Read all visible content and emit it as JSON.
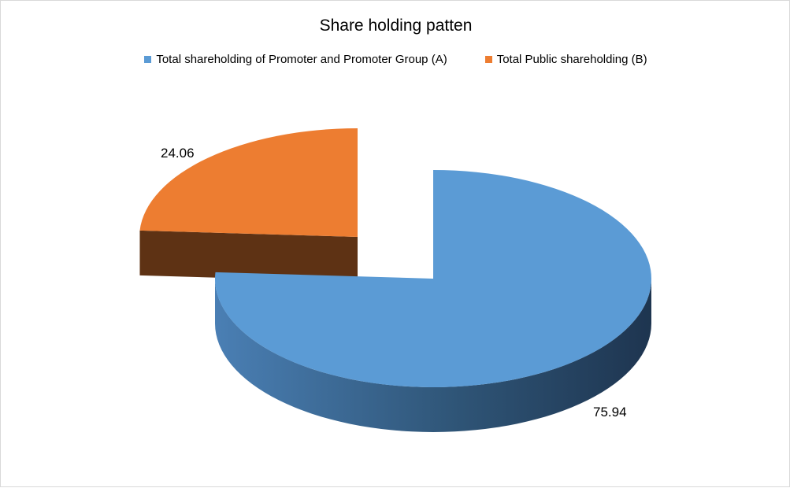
{
  "chart_data": {
    "type": "pie",
    "title": "Share holding patten",
    "categories": [
      "Total shareholding of Promoter and Promoter Group (A)",
      "Total Public shareholding (B)"
    ],
    "values": [
      75.94,
      24.06
    ],
    "labels": [
      "75.94",
      "24.06"
    ],
    "colors": [
      "#5B9BD5",
      "#ED7D31"
    ],
    "legend_position": "top",
    "style": "3d-exploded"
  }
}
